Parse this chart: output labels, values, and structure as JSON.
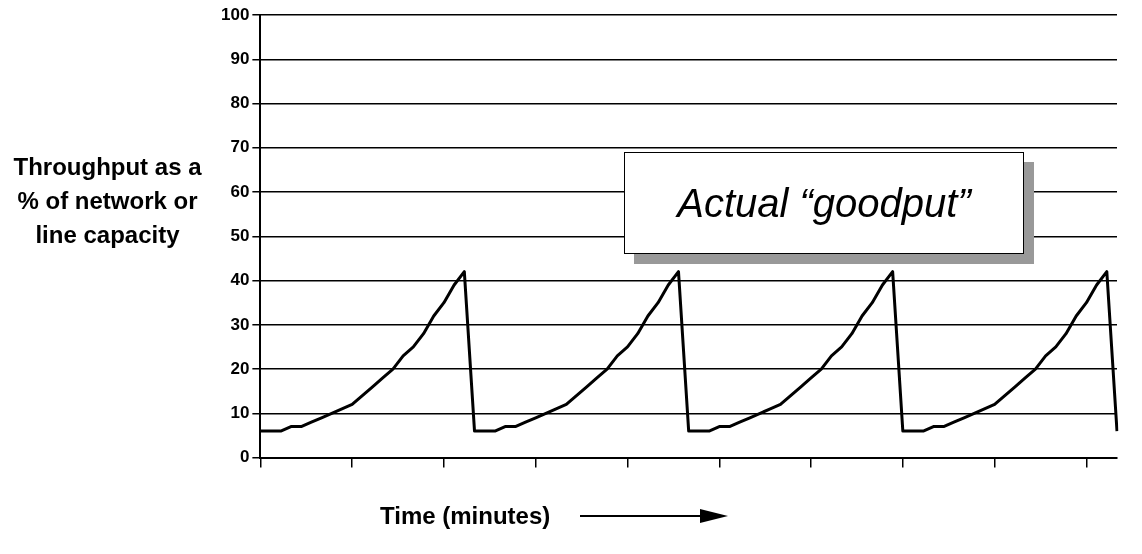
{
  "chart_data": {
    "type": "line",
    "ylabel": "Throughput as a % of network or line capacity",
    "xlabel": "Time (minutes)",
    "annotations": [
      "Actual “goodput”"
    ],
    "categories": [
      null,
      null,
      null,
      null,
      null,
      null,
      null,
      null,
      null,
      null,
      null,
      null,
      null,
      null,
      null,
      null,
      null,
      null,
      null,
      null,
      null,
      null,
      null,
      null,
      null,
      null,
      null,
      null,
      null,
      null,
      null,
      null,
      null,
      null,
      null,
      null,
      null,
      null,
      null,
      null,
      null,
      null,
      null,
      null,
      null,
      null,
      null,
      null,
      null,
      null,
      null,
      null,
      null,
      null,
      null,
      null,
      null,
      null,
      null,
      null,
      null,
      null,
      null,
      null,
      null,
      null,
      null,
      null,
      null,
      null,
      null,
      null,
      null,
      null,
      null,
      null,
      null,
      null,
      null,
      null,
      null,
      null,
      null,
      null,
      null
    ],
    "series": [
      {
        "color": "#000000",
        "values": [
          6,
          6,
          6,
          7,
          7,
          8,
          9,
          10,
          11,
          12,
          14,
          16,
          18,
          20,
          23,
          25,
          28,
          32,
          35,
          39,
          42,
          6,
          6,
          6,
          7,
          7,
          8,
          9,
          10,
          11,
          12,
          14,
          16,
          18,
          20,
          23,
          25,
          28,
          32,
          35,
          39,
          42,
          6,
          6,
          6,
          7,
          7,
          8,
          9,
          10,
          11,
          12,
          14,
          16,
          18,
          20,
          23,
          25,
          28,
          32,
          35,
          39,
          42,
          6,
          6,
          6,
          7,
          7,
          8,
          9,
          10,
          11,
          12,
          14,
          16,
          18,
          20,
          23,
          25,
          28,
          32,
          35,
          39,
          42,
          6
        ]
      }
    ],
    "ylim": [
      0,
      100
    ],
    "yticks": [
      0,
      10,
      20,
      30,
      40,
      50,
      60,
      70,
      80,
      90,
      100
    ],
    "grid": "y",
    "legend": false,
    "marker": "none",
    "line_style": "solid"
  }
}
